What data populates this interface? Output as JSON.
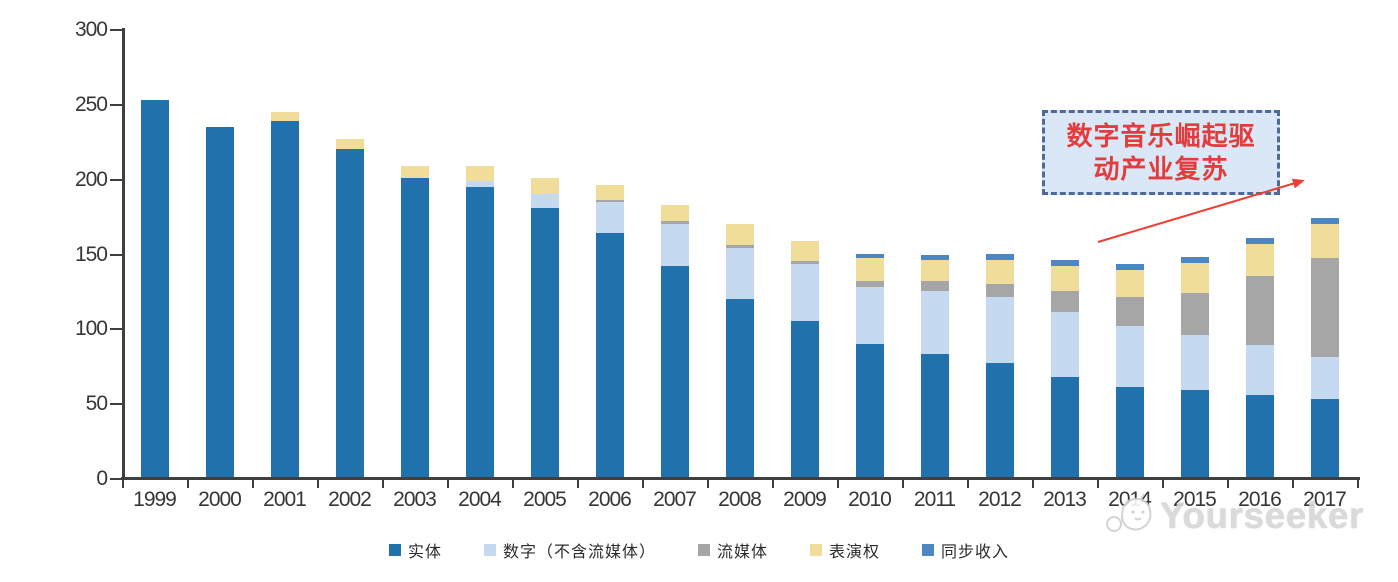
{
  "chart_data": {
    "type": "bar",
    "stacked": true,
    "title": "",
    "xlabel": "",
    "ylabel": "",
    "ylim": [
      0,
      300
    ],
    "yticks": [
      0,
      50,
      100,
      150,
      200,
      250,
      300
    ],
    "grid": false,
    "legend_position": "bottom",
    "axis_color": "#3f3f3f",
    "categories": [
      "1999",
      "2000",
      "2001",
      "2002",
      "2003",
      "2004",
      "2005",
      "2006",
      "2007",
      "2008",
      "2009",
      "2010",
      "2011",
      "2012",
      "2013",
      "2014",
      "2015",
      "2016",
      "2017"
    ],
    "series": [
      {
        "name": "实体",
        "key": "physical",
        "color": "#2171ad",
        "values": [
          252,
          234,
          238,
          219,
          200,
          194,
          180,
          163,
          141,
          119,
          104,
          89,
          82,
          76,
          67,
          60,
          58,
          55,
          52
        ]
      },
      {
        "name": "数字（不含流媒体）",
        "key": "digital",
        "color": "#c5d9f0",
        "values": [
          0,
          0,
          0,
          0,
          0,
          4,
          9,
          21,
          28,
          34,
          38,
          38,
          42,
          44,
          43,
          41,
          37,
          33,
          28
        ]
      },
      {
        "name": "流媒体",
        "key": "streaming",
        "color": "#a6a6a6",
        "values": [
          0,
          0,
          0,
          0,
          0,
          0,
          0,
          1,
          2,
          2,
          2,
          4,
          7,
          9,
          14,
          19,
          28,
          46,
          66
        ]
      },
      {
        "name": "表演权",
        "key": "performance",
        "color": "#f0dd9a",
        "values": [
          0,
          0,
          6,
          7,
          8,
          10,
          11,
          10,
          11,
          14,
          14,
          15,
          14,
          16,
          17,
          18,
          20,
          22,
          23
        ]
      },
      {
        "name": "同步收入",
        "key": "sync",
        "color": "#4d86c4",
        "values": [
          0,
          0,
          0,
          0,
          0,
          0,
          0,
          0,
          0,
          0,
          0,
          3,
          3,
          4,
          4,
          4,
          4,
          4,
          4
        ]
      }
    ],
    "totals": [
      252,
      234,
      244,
      226,
      208,
      208,
      200,
      195,
      182,
      169,
      158,
      149,
      148,
      149,
      145,
      142,
      147,
      160,
      173
    ]
  },
  "annotation": {
    "line1": "数字音乐崛起驱",
    "line2": "动产业复苏",
    "full_text": "数字音乐崛起驱动产业复苏",
    "bg_color": "#dae7f6",
    "border_color": "#51689b",
    "text_color": "#e23c3c",
    "arrow_color": "#ed3e33"
  },
  "watermark": {
    "text": "Yourseeker",
    "logo": "mascot-face-bubble-icon",
    "color": "#cccccc"
  }
}
